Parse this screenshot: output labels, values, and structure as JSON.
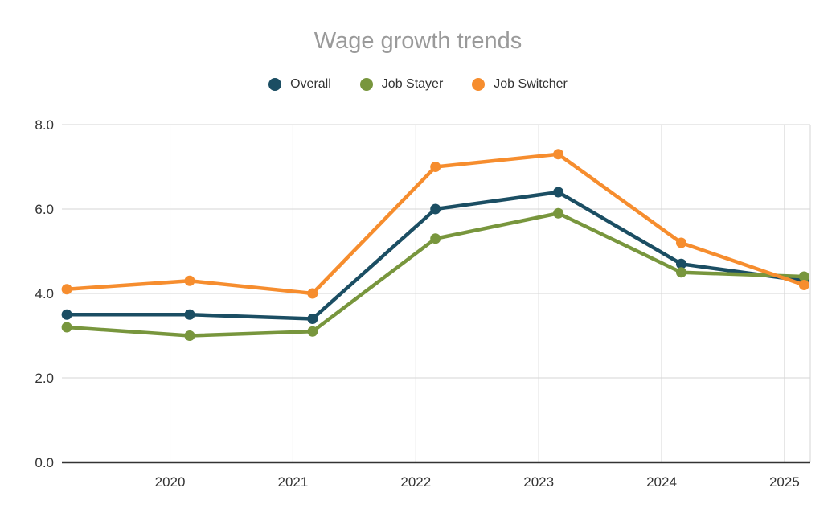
{
  "chart_data": {
    "type": "line",
    "title": "Wage growth trends",
    "xlabel": "",
    "ylabel": "",
    "x": [
      2019.16,
      2020.16,
      2021.16,
      2022.16,
      2023.16,
      2024.16,
      2025.16
    ],
    "x_ticks": [
      2020,
      2021,
      2022,
      2023,
      2024,
      2025
    ],
    "x_tick_labels": [
      "2020",
      "2021",
      "2022",
      "2023",
      "2024",
      "2025"
    ],
    "y_ticks": [
      0,
      2,
      4,
      6,
      8
    ],
    "y_tick_labels": [
      "0.0",
      "2.0",
      "4.0",
      "6.0",
      "8.0"
    ],
    "xlim": [
      2019.12,
      2025.21
    ],
    "ylim": [
      0,
      8
    ],
    "grid": true,
    "legend_position": "top",
    "series": [
      {
        "name": "Overall",
        "color": "#1b4e63",
        "values": [
          3.5,
          3.5,
          3.4,
          6.0,
          6.4,
          4.7,
          4.3
        ]
      },
      {
        "name": "Job Stayer",
        "color": "#78963d",
        "values": [
          3.2,
          3.0,
          3.1,
          5.3,
          5.9,
          4.5,
          4.4
        ]
      },
      {
        "name": "Job Switcher",
        "color": "#f68d2e",
        "values": [
          4.1,
          4.3,
          4.0,
          7.0,
          7.3,
          5.2,
          4.2
        ]
      }
    ]
  },
  "colors": {
    "title_text": "#9a9a9a",
    "tick_text": "#333333",
    "grid_line": "#d6d6d6",
    "axis_line": "#333333",
    "background": "#ffffff"
  }
}
